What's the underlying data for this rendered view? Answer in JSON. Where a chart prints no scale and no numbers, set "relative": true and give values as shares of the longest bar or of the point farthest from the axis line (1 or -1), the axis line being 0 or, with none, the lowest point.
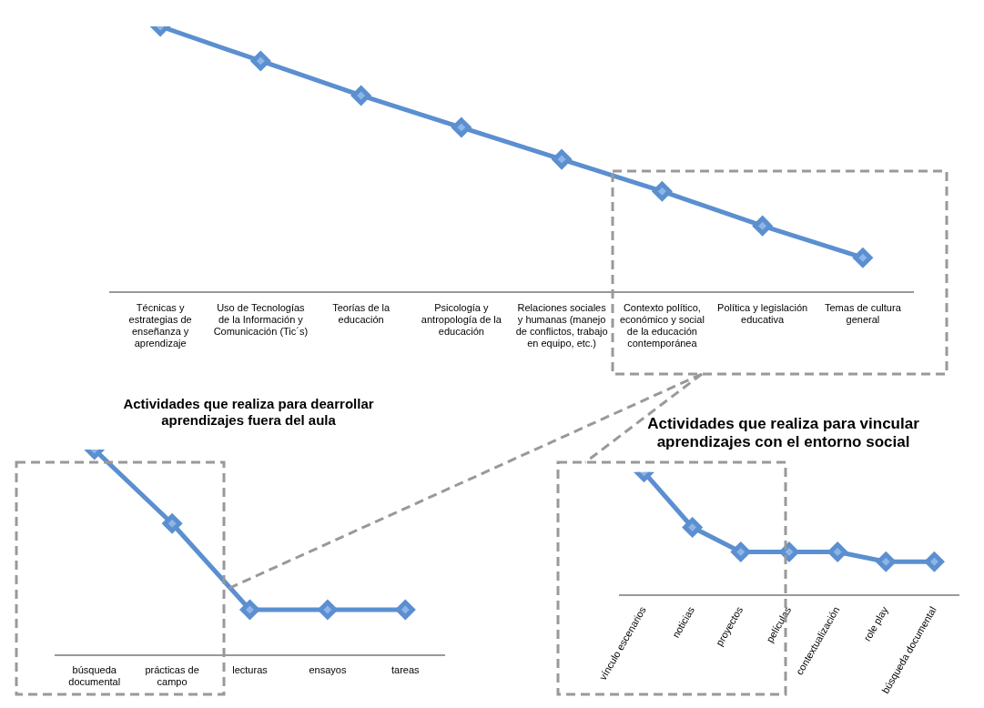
{
  "chart_data": [
    {
      "type": "line",
      "relative": true,
      "categories": [
        "Técnicas y estrategias de enseñanza y aprendizaje",
        "Uso de Tecnologías de la Información y Comunicación (Tic´s)",
        "Teorías de la educación",
        "Psicología y antropología de la educación",
        "Relaciones sociales y humanas (manejo de conflictos, trabajo en equipo, etc.)",
        "Contexto político, económico y social de la educación contemporánea",
        "Política y legislación educativa",
        "Temas de cultura general"
      ],
      "series": [
        {
          "color": "#5b8fd0",
          "values": [
            1,
            0.87,
            0.74,
            0.62,
            0.5,
            0.38,
            0.25,
            0.13
          ]
        }
      ],
      "marker": "diamond",
      "grid": false,
      "legend": false
    },
    {
      "type": "line",
      "relative": true,
      "title": "Actividades que realiza para dearrollar aprendizajes fuera del aula",
      "categories": [
        "búsqueda documental",
        "prácticas de campo",
        "lecturas",
        "ensayos",
        "tareas"
      ],
      "series": [
        {
          "color": "#5b8fd0",
          "values": [
            1,
            0.64,
            0.22,
            0.22,
            0.22
          ]
        }
      ],
      "marker": "diamond",
      "grid": false,
      "legend": false
    },
    {
      "type": "line",
      "relative": true,
      "title": "Actividades que realiza para vincular aprendizajes con el entorno social",
      "categories": [
        "vínculo escenarios",
        "noticias",
        "proyectos",
        "películas",
        "contextualización",
        "role play",
        "búsqueda documental"
      ],
      "series": [
        {
          "color": "#5b8fd0",
          "values": [
            1,
            0.55,
            0.35,
            0.35,
            0.35,
            0.27,
            0.27
          ]
        }
      ],
      "marker": "diamond",
      "grid": false,
      "legend": false
    }
  ]
}
